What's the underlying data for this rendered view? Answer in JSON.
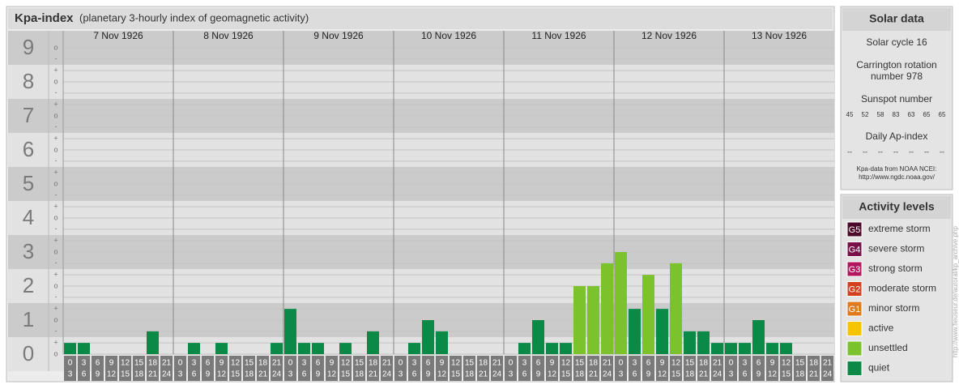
{
  "header": {
    "title": "Kpa-index",
    "subtitle": "(planetary 3-hourly index of geomagnetic activity)"
  },
  "chart_data": {
    "type": "bar",
    "ylim": [
      0,
      9.5
    ],
    "yticks": [
      0,
      1,
      2,
      3,
      4,
      5,
      6,
      7,
      8,
      9
    ],
    "minor_yticks": [
      {
        "value": 0,
        "label": "o"
      },
      {
        "value": 0.33,
        "label": "+"
      },
      {
        "value": 0.67,
        "label": "-"
      },
      {
        "value": 1,
        "label": "o"
      },
      {
        "value": 1.33,
        "label": "+"
      },
      {
        "value": 1.67,
        "label": "-"
      },
      {
        "value": 2,
        "label": "o"
      },
      {
        "value": 2.33,
        "label": "+"
      },
      {
        "value": 2.67,
        "label": "-"
      },
      {
        "value": 3,
        "label": "o"
      },
      {
        "value": 3.33,
        "label": "+"
      },
      {
        "value": 3.67,
        "label": "-"
      },
      {
        "value": 4,
        "label": "o"
      },
      {
        "value": 4.33,
        "label": "+"
      },
      {
        "value": 4.67,
        "label": "-"
      },
      {
        "value": 5,
        "label": "o"
      },
      {
        "value": 5.33,
        "label": "+"
      },
      {
        "value": 5.67,
        "label": "-"
      },
      {
        "value": 6,
        "label": "o"
      },
      {
        "value": 6.33,
        "label": "+"
      },
      {
        "value": 6.67,
        "label": "-"
      },
      {
        "value": 7,
        "label": "o"
      },
      {
        "value": 7.33,
        "label": "+"
      },
      {
        "value": 7.67,
        "label": "-"
      },
      {
        "value": 8,
        "label": "o"
      },
      {
        "value": 8.33,
        "label": "+"
      },
      {
        "value": 8.67,
        "label": "-"
      },
      {
        "value": 9,
        "label": "o"
      }
    ],
    "time_slots": [
      {
        "start": "0",
        "end": "3"
      },
      {
        "start": "3",
        "end": "6"
      },
      {
        "start": "6",
        "end": "9"
      },
      {
        "start": "9",
        "end": "12"
      },
      {
        "start": "12",
        "end": "15"
      },
      {
        "start": "15",
        "end": "18"
      },
      {
        "start": "18",
        "end": "21"
      },
      {
        "start": "21",
        "end": "24"
      }
    ],
    "days": [
      {
        "date": "7 Nov 1926",
        "values": [
          0.33,
          0.33,
          0,
          0,
          0,
          0,
          0.67,
          0
        ],
        "colors": [
          "#0a8a46",
          "#0a8a46",
          "#0a8a46",
          "#0a8a46",
          "#0a8a46",
          "#0a8a46",
          "#0a8a46",
          "#0a8a46"
        ]
      },
      {
        "date": "8 Nov 1926",
        "values": [
          0,
          0.33,
          0,
          0.33,
          0,
          0,
          0,
          0.33
        ],
        "colors": [
          "#0a8a46",
          "#0a8a46",
          "#0a8a46",
          "#0a8a46",
          "#0a8a46",
          "#0a8a46",
          "#0a8a46",
          "#0a8a46"
        ]
      },
      {
        "date": "9 Nov 1926",
        "values": [
          1.33,
          0.33,
          0.33,
          0,
          0.33,
          0,
          0.67,
          0
        ],
        "colors": [
          "#0a8a46",
          "#0a8a46",
          "#0a8a46",
          "#0a8a46",
          "#0a8a46",
          "#0a8a46",
          "#0a8a46",
          "#0a8a46"
        ]
      },
      {
        "date": "10 Nov 1926",
        "values": [
          0,
          0.33,
          1,
          0.67,
          0,
          0,
          0,
          0
        ],
        "colors": [
          "#0a8a46",
          "#0a8a46",
          "#0a8a46",
          "#0a8a46",
          "#0a8a46",
          "#0a8a46",
          "#0a8a46",
          "#0a8a46"
        ]
      },
      {
        "date": "11 Nov 1926",
        "values": [
          0,
          0.33,
          1,
          0.33,
          0.33,
          2,
          2,
          2.67
        ],
        "colors": [
          "#0a8a46",
          "#0a8a46",
          "#0a8a46",
          "#0a8a46",
          "#0a8a46",
          "#7cc22c",
          "#7cc22c",
          "#7cc22c"
        ]
      },
      {
        "date": "12 Nov 1926",
        "values": [
          3,
          1.33,
          2.33,
          1.33,
          2.67,
          0.67,
          0.67,
          0.33
        ],
        "colors": [
          "#7cc22c",
          "#0a8a46",
          "#7cc22c",
          "#0a8a46",
          "#7cc22c",
          "#0a8a46",
          "#0a8a46",
          "#0a8a46"
        ]
      },
      {
        "date": "13 Nov 1926",
        "values": [
          0.33,
          0.33,
          1,
          0.33,
          0.33,
          0,
          0,
          0
        ],
        "colors": [
          "#0a8a46",
          "#0a8a46",
          "#0a8a46",
          "#0a8a46",
          "#0a8a46",
          "#0a8a46",
          "#0a8a46",
          "#0a8a46"
        ]
      }
    ]
  },
  "solar_data": {
    "title": "Solar data",
    "solar_cycle": "Solar cycle 16",
    "carrington": [
      "Carrington rotation",
      "number 978"
    ],
    "sunspot_label": "Sunspot number",
    "sunspot_numbers": [
      45,
      52,
      58,
      83,
      63,
      65,
      65
    ],
    "ap_label": "Daily Ap-index",
    "ap_values": [
      "--",
      "--",
      "--",
      "--",
      "--",
      "--",
      "--"
    ],
    "source_note": [
      "Kpa-data from NOAA NCEI:",
      "http://www.ngdc.noaa.gov/"
    ]
  },
  "activity_levels": {
    "title": "Activity levels",
    "items": [
      {
        "code": "G5",
        "label": "extreme storm",
        "color": "#4a0a28"
      },
      {
        "code": "G4",
        "label": "severe storm",
        "color": "#7a1048"
      },
      {
        "code": "G3",
        "label": "strong storm",
        "color": "#b3175e"
      },
      {
        "code": "G2",
        "label": "moderate storm",
        "color": "#d2401e"
      },
      {
        "code": "G1",
        "label": "minor storm",
        "color": "#e07a1e"
      },
      {
        "label": "active",
        "color": "#f6c500"
      },
      {
        "label": "unsettled",
        "color": "#7cc22c"
      },
      {
        "label": "quiet",
        "color": "#0a8a46"
      }
    ]
  },
  "side_url": "http://www.fieuseur.de/auroral/kp_archive.php"
}
